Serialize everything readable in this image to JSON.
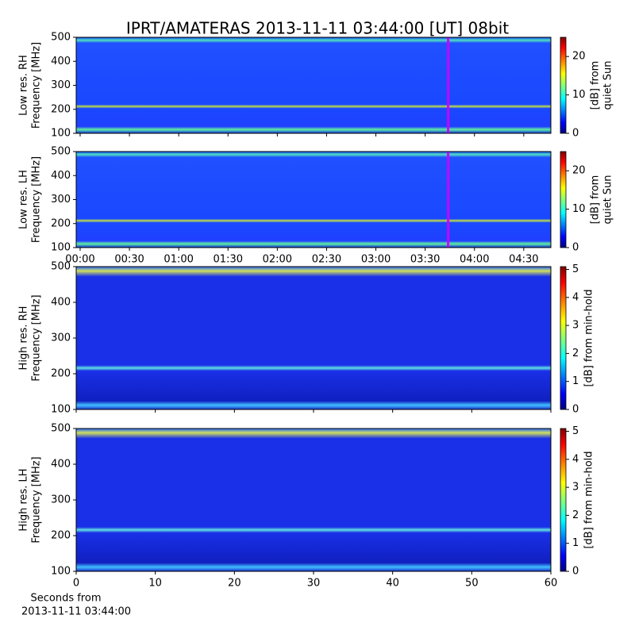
{
  "chart_data": [
    {
      "type": "heatmap",
      "title": "IPRT/AMATERAS 2013-11-11 03:44:00 [UT]   08bit",
      "ylabel": [
        "Low res. RH",
        "Frequency [MHz]"
      ],
      "xlim": [
        -2.4,
        286.5
      ],
      "ylim": [
        100,
        500
      ],
      "yticks": [
        100,
        200,
        300,
        400,
        500
      ],
      "highlight_x": 224,
      "highlight_color": "#cc00ff",
      "clim": [
        0,
        25
      ],
      "cticks": [
        0,
        10,
        20
      ],
      "colorbar_label": [
        "[dB] from",
        "quiet Sun"
      ]
    },
    {
      "type": "heatmap",
      "ylabel": [
        "Low res. LH",
        "Frequency [MHz]"
      ],
      "xlim": [
        -2.4,
        286.5
      ],
      "ylim": [
        100,
        500
      ],
      "yticks": [
        100,
        200,
        300,
        400,
        500
      ],
      "xticks": [
        {
          "value": 0,
          "label": "00:00"
        },
        {
          "value": 30,
          "label": "00:30"
        },
        {
          "value": 60,
          "label": "01:00"
        },
        {
          "value": 90,
          "label": "01:30"
        },
        {
          "value": 120,
          "label": "02:00"
        },
        {
          "value": 150,
          "label": "02:30"
        },
        {
          "value": 180,
          "label": "03:00"
        },
        {
          "value": 210,
          "label": "03:30"
        },
        {
          "value": 240,
          "label": "04:00"
        },
        {
          "value": 270,
          "label": "04:30"
        }
      ],
      "highlight_x": 224,
      "highlight_color": "#cc00ff",
      "clim": [
        0,
        25
      ],
      "cticks": [
        0,
        10,
        20
      ],
      "colorbar_label": [
        "[dB] from",
        "quiet Sun"
      ]
    },
    {
      "type": "heatmap",
      "ylabel": [
        "High res. RH",
        "Frequency [MHz]"
      ],
      "xlim": [
        0,
        60
      ],
      "ylim": [
        100,
        500
      ],
      "yticks": [
        100,
        200,
        300,
        400,
        500
      ],
      "clim": [
        0,
        5.1
      ],
      "cticks": [
        0,
        1,
        2,
        3,
        4,
        5
      ],
      "colorbar_label": [
        "[dB] from min-hold"
      ]
    },
    {
      "type": "heatmap",
      "ylabel": [
        "High res. LH",
        "Frequency [MHz]"
      ],
      "xlabel": [
        "Seconds from",
        "2013-11-11 03:44:00"
      ],
      "xlim": [
        0,
        60
      ],
      "ylim": [
        100,
        500
      ],
      "yticks": [
        100,
        200,
        300,
        400,
        500
      ],
      "xticks": [
        0,
        10,
        20,
        30,
        40,
        50,
        60
      ],
      "clim": [
        0,
        5.1
      ],
      "cticks": [
        0,
        1,
        2,
        3,
        4,
        5
      ],
      "colorbar_label": [
        "[dB] from min-hold"
      ]
    }
  ]
}
